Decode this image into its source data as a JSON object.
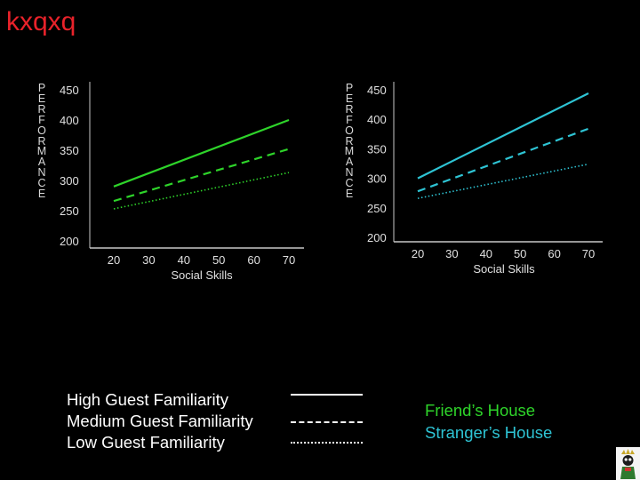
{
  "title": "kxqxq",
  "colors": {
    "title": "#e8222a",
    "friends_house": "#2ed42a",
    "strangers_house": "#2ec4d4",
    "axis": "#c8c8c8",
    "text": "#ffffff"
  },
  "chart_data": [
    {
      "type": "line",
      "ylabel": "PERFORMANCE",
      "xlabel": "Social Skills",
      "x": [
        20,
        30,
        40,
        50,
        60,
        70
      ],
      "yticks": [
        200,
        250,
        300,
        350,
        400,
        450
      ],
      "xlim": [
        20,
        70
      ],
      "ylim": [
        200,
        450
      ],
      "color": "#2ed42a",
      "series": [
        {
          "style": "solid",
          "x": [
            20,
            70
          ],
          "values": [
            290,
            400
          ]
        },
        {
          "style": "dashed",
          "x": [
            20,
            70
          ],
          "values": [
            266,
            352
          ]
        },
        {
          "style": "dotted",
          "x": [
            20,
            70
          ],
          "values": [
            253,
            313
          ]
        }
      ]
    },
    {
      "type": "line",
      "ylabel": "PERFORMANCE",
      "xlabel": "Social Skills",
      "x": [
        20,
        30,
        40,
        50,
        60,
        70
      ],
      "yticks": [
        200,
        250,
        300,
        350,
        400,
        450
      ],
      "xlim": [
        20,
        70
      ],
      "ylim": [
        200,
        450
      ],
      "color": "#2ec4d4",
      "series": [
        {
          "style": "solid",
          "x": [
            20,
            70
          ],
          "values": [
            300,
            444
          ]
        },
        {
          "style": "dashed",
          "x": [
            20,
            70
          ],
          "values": [
            278,
            384
          ]
        },
        {
          "style": "dotted",
          "x": [
            20,
            70
          ],
          "values": [
            266,
            324
          ]
        }
      ]
    }
  ],
  "legend": [
    {
      "label": "High Guest Familiarity",
      "style": "solid"
    },
    {
      "label": "Medium Guest Familiarity",
      "style": "dashed"
    },
    {
      "label": "Low Guest Familiarity",
      "style": "dotted"
    }
  ],
  "house_legend": [
    {
      "label": "Friend’s House",
      "color": "#2ed42a"
    },
    {
      "label": "Stranger’s House",
      "color": "#2ec4d4"
    }
  ]
}
